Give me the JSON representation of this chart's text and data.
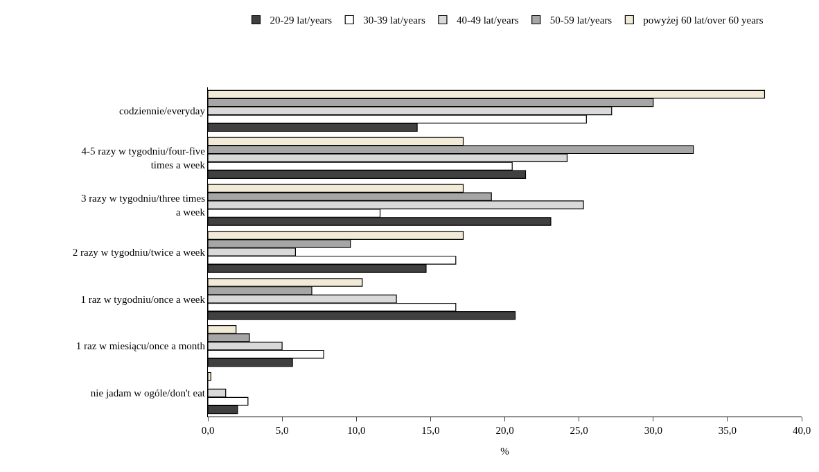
{
  "chart_data": {
    "type": "bar",
    "orientation": "horizontal",
    "xlabel": "%",
    "categories": [
      "codziennie/everyday",
      "4-5 razy w tygodniu/four-five times a week",
      "3 razy w tygodniu/three times a week",
      "2 razy w tygodniu/twice a week",
      "1 raz w tygodniu/once a week",
      "1 raz w miesiącu/once a month",
      "nie jadam w ogóle/don't eat"
    ],
    "series": [
      {
        "name": "20-29 lat/years",
        "color": "#404040",
        "values": [
          14.1,
          21.4,
          23.1,
          14.7,
          20.7,
          5.7,
          2.0
        ]
      },
      {
        "name": "30-39 lat/years",
        "color": "#ffffff",
        "values": [
          25.5,
          20.5,
          11.6,
          16.7,
          16.7,
          7.8,
          2.7
        ]
      },
      {
        "name": "40-49 lat/years",
        "color": "#d9d9d9",
        "values": [
          27.2,
          24.2,
          25.3,
          5.9,
          12.7,
          5.0,
          1.2
        ]
      },
      {
        "name": "50-59 lat/years",
        "color": "#a6a6a6",
        "values": [
          30.0,
          32.7,
          19.1,
          9.6,
          7.0,
          2.8,
          0
        ]
      },
      {
        "name": "powyżej 60 lat/over 60 years",
        "color": "#f0ead6",
        "values": [
          37.5,
          17.2,
          17.2,
          17.2,
          10.4,
          1.9,
          0.2
        ]
      }
    ],
    "xlim": [
      0,
      40
    ],
    "xticks": [
      {
        "value": 0,
        "label": "0,0"
      },
      {
        "value": 5,
        "label": "5,0"
      },
      {
        "value": 10,
        "label": "10,0"
      },
      {
        "value": 15,
        "label": "15,0"
      },
      {
        "value": 20,
        "label": "20,0"
      },
      {
        "value": 25,
        "label": "25,0"
      },
      {
        "value": 30,
        "label": "30,0"
      },
      {
        "value": 35,
        "label": "35,0"
      },
      {
        "value": 40,
        "label": "40,0"
      }
    ],
    "grid": false,
    "legend": "top"
  }
}
